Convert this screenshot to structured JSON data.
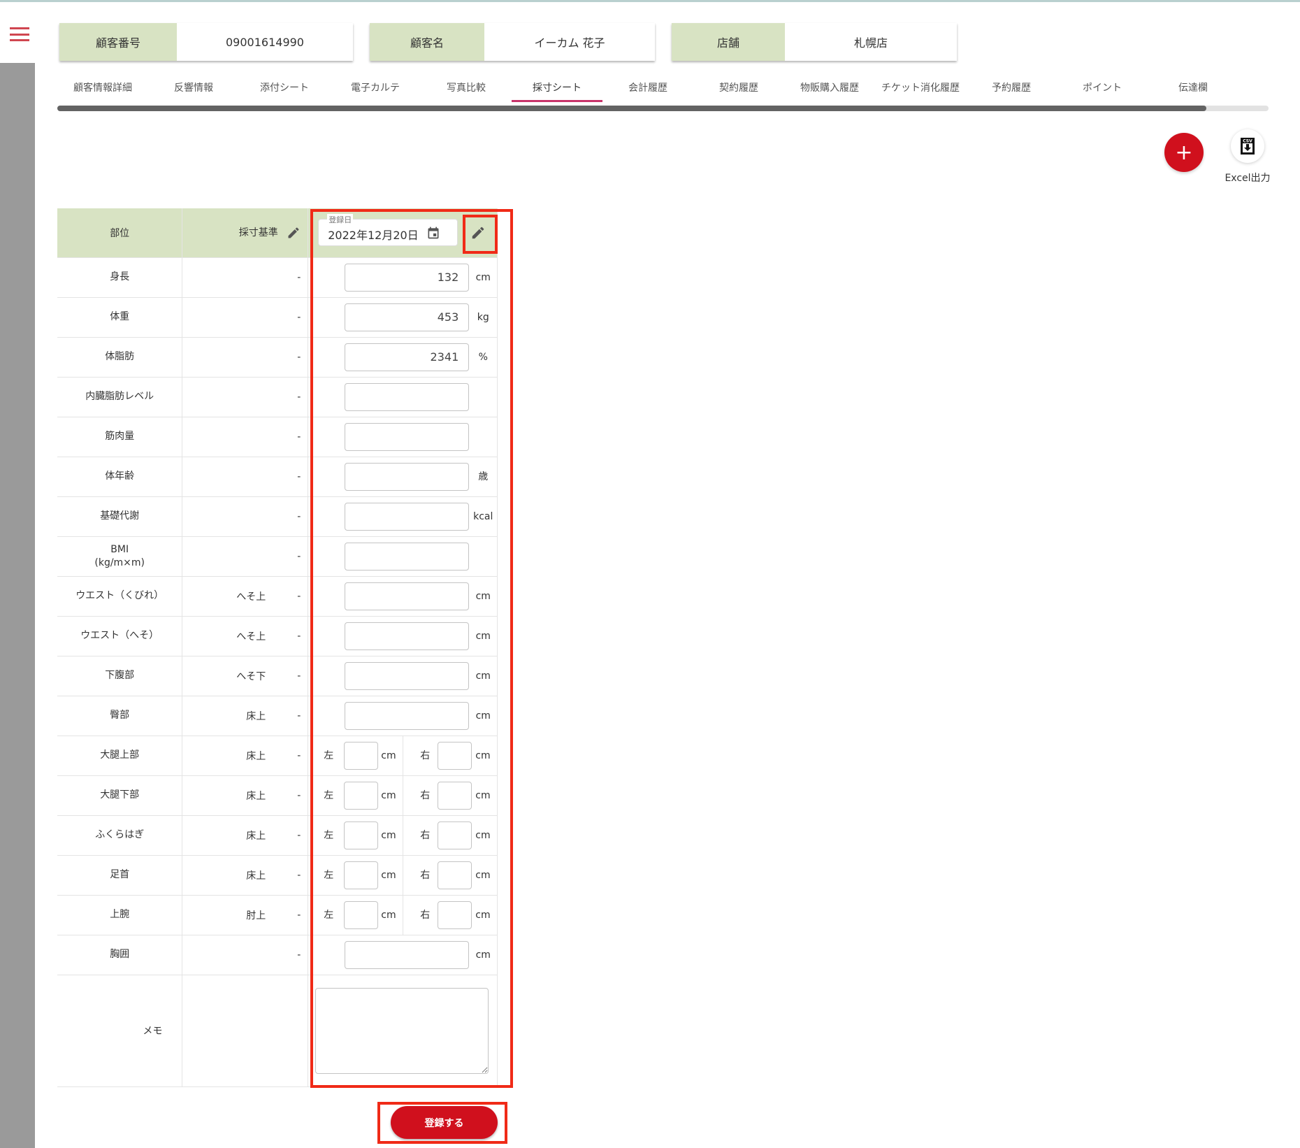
{
  "header": {
    "cards": [
      {
        "label": "顧客番号",
        "value": "09001614990"
      },
      {
        "label": "顧客名",
        "value": "イーカム 花子"
      },
      {
        "label": "店舗",
        "value": "札幌店"
      }
    ]
  },
  "tabs": [
    "顧客情報詳細",
    "反響情報",
    "添付シート",
    "電子カルテ",
    "写真比較",
    "採寸シート",
    "会計履歴",
    "契約履歴",
    "物販購入履歴",
    "チケット消化履歴",
    "予約履歴",
    "ポイント",
    "伝達欄"
  ],
  "active_tab": "採寸シート",
  "actions": {
    "add_icon": "+",
    "excel_label": "Excel出力",
    "csv_icon_text": "CSV"
  },
  "table": {
    "headers": {
      "part": "部位",
      "standard": "採寸基準",
      "date_label": "登録日",
      "date_value": "2022年12月20日"
    },
    "rows": [
      {
        "part": "身長",
        "ref": "",
        "dash": "-",
        "value": "132",
        "unit": "cm"
      },
      {
        "part": "体重",
        "ref": "",
        "dash": "-",
        "value": "453",
        "unit": "kg"
      },
      {
        "part": "体脂肪",
        "ref": "",
        "dash": "-",
        "value": "2341",
        "unit": "%"
      },
      {
        "part": "内臓脂肪レベル",
        "ref": "",
        "dash": "-",
        "value": "",
        "unit": ""
      },
      {
        "part": "筋肉量",
        "ref": "",
        "dash": "-",
        "value": "",
        "unit": ""
      },
      {
        "part": "体年齢",
        "ref": "",
        "dash": "-",
        "value": "",
        "unit": "歳"
      },
      {
        "part": "基礎代謝",
        "ref": "",
        "dash": "-",
        "value": "",
        "unit": "kcal"
      },
      {
        "part": "BMI\n(kg/m×m)",
        "ref": "",
        "dash": "-",
        "value": "",
        "unit": ""
      },
      {
        "part": "ウエスト（くびれ）",
        "ref": "へそ上",
        "dash": "-",
        "value": "",
        "unit": "cm"
      },
      {
        "part": "ウエスト（へそ）",
        "ref": "へそ上",
        "dash": "-",
        "value": "",
        "unit": "cm"
      },
      {
        "part": "下腹部",
        "ref": "へそ下",
        "dash": "-",
        "value": "",
        "unit": "cm"
      },
      {
        "part": "臀部",
        "ref": "床上",
        "dash": "-",
        "value": "",
        "unit": "cm"
      },
      {
        "part": "大腿上部",
        "ref": "床上",
        "dash": "-",
        "split": true,
        "left": "左",
        "right": "右",
        "unit": "cm"
      },
      {
        "part": "大腿下部",
        "ref": "床上",
        "dash": "-",
        "split": true,
        "left": "左",
        "right": "右",
        "unit": "cm"
      },
      {
        "part": "ふくらはぎ",
        "ref": "床上",
        "dash": "-",
        "split": true,
        "left": "左",
        "right": "右",
        "unit": "cm"
      },
      {
        "part": "足首",
        "ref": "床上",
        "dash": "-",
        "split": true,
        "left": "左",
        "right": "右",
        "unit": "cm"
      },
      {
        "part": "上腕",
        "ref": "肘上",
        "dash": "-",
        "split": true,
        "left": "左",
        "right": "右",
        "unit": "cm"
      },
      {
        "part": "胸囲",
        "ref": "",
        "dash": "-",
        "value": "",
        "unit": "cm"
      }
    ],
    "memo_label": "メモ"
  },
  "submit_label": "登録する",
  "colors": {
    "accent": "#d0101d",
    "header_bg": "#d8e3c3",
    "highlight": "#f02a17",
    "tab_indicator": "#c8336a"
  }
}
